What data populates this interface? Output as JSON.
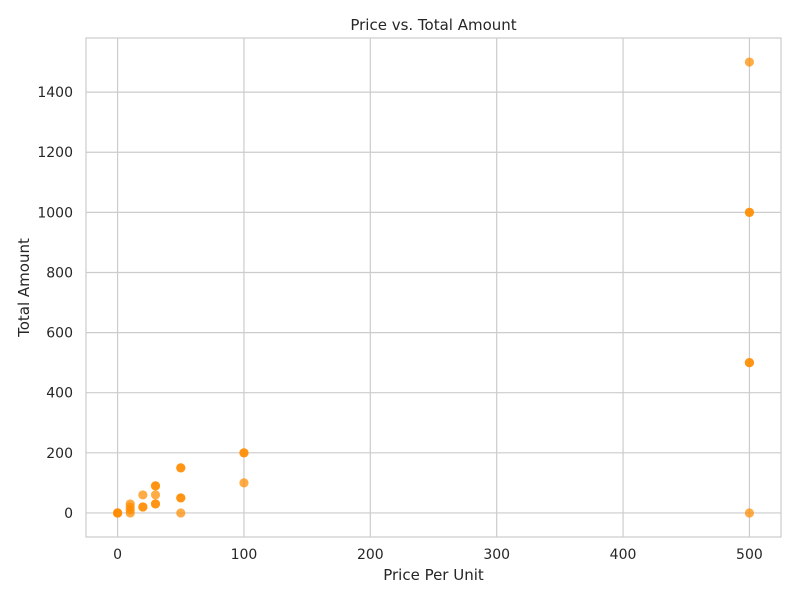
{
  "chart_data": {
    "type": "scatter",
    "title": "Price vs. Total Amount",
    "xlabel": "Price Per Unit",
    "ylabel": "Total Amount",
    "xlim": [
      -25,
      525
    ],
    "ylim": [
      -80,
      1580
    ],
    "xticks": [
      0,
      100,
      200,
      300,
      400,
      500
    ],
    "yticks": [
      0,
      200,
      400,
      600,
      800,
      1000,
      1200,
      1400
    ],
    "grid": true,
    "point_color": "#ff8c00",
    "background_color": "#ffffff",
    "grid_color": "#cccccc",
    "points": [
      {
        "x": 0,
        "y": 0
      },
      {
        "x": 0,
        "y": 0
      },
      {
        "x": 0,
        "y": 0
      },
      {
        "x": 10,
        "y": 0
      },
      {
        "x": 10,
        "y": 10
      },
      {
        "x": 10,
        "y": 20
      },
      {
        "x": 10,
        "y": 30
      },
      {
        "x": 20,
        "y": 20
      },
      {
        "x": 20,
        "y": 20
      },
      {
        "x": 20,
        "y": 60
      },
      {
        "x": 30,
        "y": 30
      },
      {
        "x": 30,
        "y": 30
      },
      {
        "x": 30,
        "y": 60
      },
      {
        "x": 30,
        "y": 90
      },
      {
        "x": 30,
        "y": 90
      },
      {
        "x": 50,
        "y": 0
      },
      {
        "x": 50,
        "y": 50
      },
      {
        "x": 50,
        "y": 50
      },
      {
        "x": 50,
        "y": 150
      },
      {
        "x": 50,
        "y": 150
      },
      {
        "x": 100,
        "y": 100
      },
      {
        "x": 100,
        "y": 200
      },
      {
        "x": 100,
        "y": 200
      },
      {
        "x": 500,
        "y": 0
      },
      {
        "x": 500,
        "y": 500
      },
      {
        "x": 500,
        "y": 500
      },
      {
        "x": 500,
        "y": 1000
      },
      {
        "x": 500,
        "y": 1000
      },
      {
        "x": 500,
        "y": 1500
      }
    ]
  }
}
